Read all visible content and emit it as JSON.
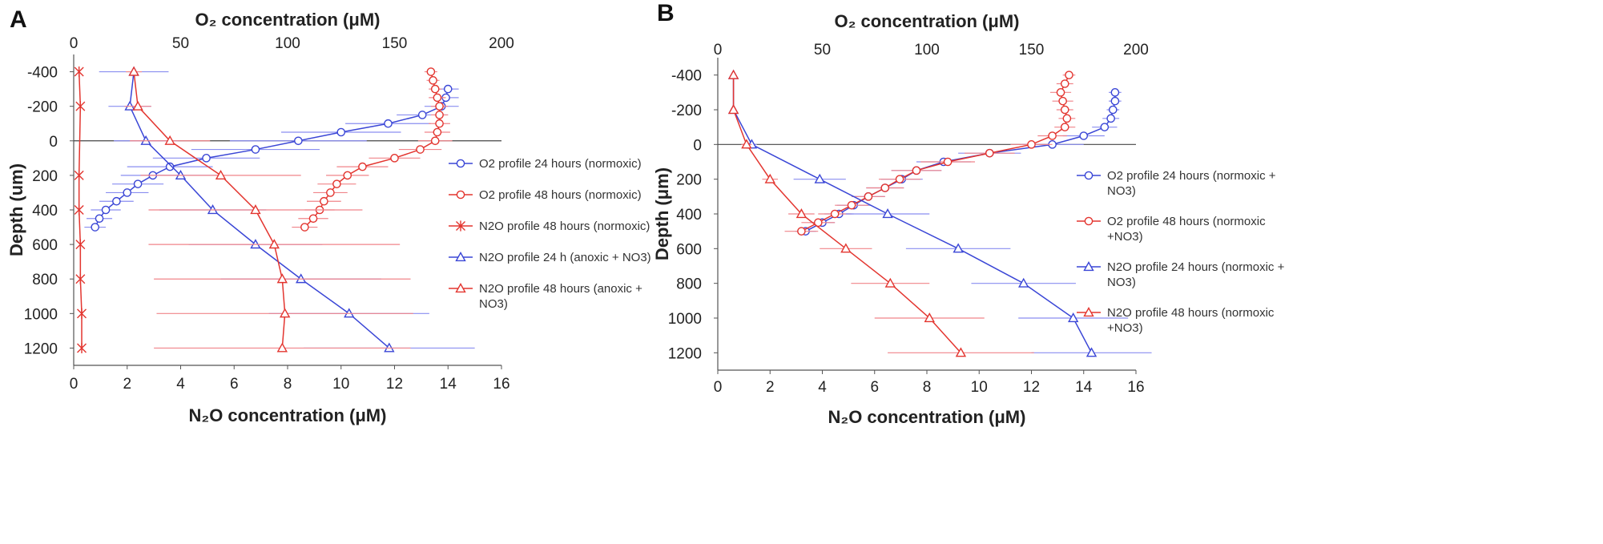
{
  "colors": {
    "blue": "#3a46d6",
    "blue_err": "#8a8ef0",
    "red": "#e3352f",
    "red_err": "#f0848a",
    "axis": "#555555",
    "zero_line": "#444444"
  },
  "chart_data": [
    {
      "panel": "A",
      "type": "line",
      "title_top": "O₂ concentration (μM)",
      "xlabel": "N₂O concentration (μM)",
      "ylabel": "Depth (um)",
      "x_bottom_range": [
        0,
        16
      ],
      "x_bottom_ticks": [
        "0",
        "2",
        "4",
        "6",
        "8",
        "10",
        "12",
        "14",
        "16"
      ],
      "x_top_range": [
        0,
        200
      ],
      "x_top_ticks": [
        "0",
        "50",
        "100",
        "150",
        "200"
      ],
      "y_range": [
        -500,
        1300
      ],
      "y_ticks": [
        "-400",
        "-200",
        "0",
        "200",
        "400",
        "600",
        "800",
        "1000",
        "1200"
      ],
      "legend": [
        "O2 profile 24 hours (normoxic)",
        "O2 profile 48 hours (normoxic)",
        "N2O profile 48 hours (normoxic)",
        "N2O profile 24 h (anoxic + NO3)",
        "N2O profile 48 hours (anoxic + NO3)"
      ],
      "legend_lines": [
        [
          "O2 profile 24 hours (normoxic)"
        ],
        [
          "O2 profile 48 hours (normoxic)"
        ],
        [
          "N2O profile 48 hours (normoxic)"
        ],
        [
          "N2O profile 24 h (anoxic + NO3)"
        ],
        [
          "N2O profile 48 hours (anoxic +",
          "NO3)"
        ]
      ],
      "series": [
        {
          "name": "O2 profile 24 hours (normoxic)",
          "axis": "top",
          "marker": "circle",
          "color": "blue",
          "depth": [
            -300,
            -250,
            -200,
            -150,
            -100,
            -50,
            0,
            50,
            100,
            150,
            200,
            250,
            300,
            350,
            400,
            450,
            500
          ],
          "value": [
            175,
            174,
            172,
            163,
            147,
            125,
            105,
            85,
            62,
            45,
            37,
            30,
            25,
            20,
            15,
            12,
            10
          ],
          "err": [
            5,
            6,
            8,
            12,
            20,
            28,
            32,
            30,
            25,
            20,
            15,
            12,
            10,
            8,
            7,
            6,
            5
          ]
        },
        {
          "name": "O2 profile 48 hours (normoxic)",
          "axis": "top",
          "marker": "circle",
          "color": "red",
          "depth": [
            -400,
            -350,
            -300,
            -250,
            -200,
            -150,
            -100,
            -50,
            0,
            50,
            100,
            150,
            200,
            250,
            300,
            350,
            400,
            450,
            500
          ],
          "value": [
            167,
            168,
            169,
            170,
            171,
            171,
            171,
            170,
            169,
            162,
            150,
            135,
            128,
            123,
            120,
            117,
            115,
            112,
            108
          ],
          "err": [
            3,
            3,
            3,
            4,
            4,
            4,
            5,
            6,
            8,
            10,
            12,
            12,
            10,
            9,
            8,
            8,
            7,
            7,
            6
          ]
        },
        {
          "name": "N2O profile 48 hours (normoxic)",
          "axis": "bottom",
          "marker": "star",
          "color": "red",
          "depth": [
            -400,
            -200,
            200,
            400,
            600,
            800,
            1000,
            1200
          ],
          "value": [
            0.2,
            0.25,
            0.2,
            0.2,
            0.25,
            0.25,
            0.3,
            0.3
          ],
          "err": [
            0,
            0,
            0,
            0,
            0,
            0,
            0,
            0
          ]
        },
        {
          "name": "N2O profile 24 h (anoxic + NO3)",
          "axis": "bottom",
          "marker": "triangle",
          "color": "blue",
          "depth": [
            -400,
            -200,
            0,
            200,
            400,
            600,
            800,
            1000,
            1200
          ],
          "value": [
            2.25,
            2.1,
            2.7,
            4.0,
            5.2,
            6.8,
            8.5,
            10.3,
            11.8
          ],
          "err": [
            1.3,
            0.8,
            1.2,
            1.5,
            2.0,
            2.5,
            3.0,
            3.0,
            3.2
          ]
        },
        {
          "name": "N2O profile 48 hours (anoxic + NO3)",
          "axis": "bottom",
          "marker": "triangle",
          "color": "red",
          "depth": [
            -400,
            -200,
            0,
            200,
            400,
            600,
            800,
            1000,
            1200
          ],
          "value": [
            2.25,
            2.4,
            3.6,
            5.5,
            6.8,
            7.5,
            7.8,
            7.9,
            7.8
          ],
          "err": [
            0.3,
            0.5,
            1.5,
            3.0,
            4.0,
            4.7,
            4.8,
            4.8,
            4.8
          ]
        }
      ]
    },
    {
      "panel": "B",
      "type": "line",
      "title_top": "O₂ concentration (μM)",
      "xlabel": "N₂O concentration (μM)",
      "ylabel": "Depth (μm)",
      "x_bottom_range": [
        0,
        16
      ],
      "x_bottom_ticks": [
        "0",
        "2",
        "4",
        "6",
        "8",
        "10",
        "12",
        "14",
        "16"
      ],
      "x_top_range": [
        0,
        200
      ],
      "x_top_ticks": [
        "0",
        "50",
        "100",
        "150",
        "200"
      ],
      "y_range": [
        -500,
        1300
      ],
      "y_ticks": [
        "-400",
        "-200",
        "0",
        "200",
        "400",
        "600",
        "800",
        "1000",
        "1200"
      ],
      "legend": [
        "O2 profile 24 hours (normoxic + NO3)",
        "O2 profile 48 hours (normoxic +NO3)",
        "N2O profile 24 hours (normoxic + NO3)",
        "N2O profile 48 hours (normoxic +NO3)"
      ],
      "legend_lines": [
        [
          "O2 profile 24 hours (normoxic +",
          "NO3)"
        ],
        [
          "O2 profile 48 hours (normoxic",
          "+NO3)"
        ],
        [
          "N2O profile 24 hours (normoxic +",
          "NO3)"
        ],
        [
          "N2O profile 48 hours (normoxic",
          "+NO3)"
        ]
      ],
      "series": [
        {
          "name": "O2 profile 24 hours (normoxic + NO3)",
          "axis": "top",
          "marker": "circle",
          "color": "blue",
          "depth": [
            -300,
            -250,
            -200,
            -150,
            -100,
            -50,
            0,
            50,
            100,
            150,
            200,
            250,
            300,
            350,
            400,
            450,
            500
          ],
          "value": [
            190,
            190,
            189,
            188,
            185,
            175,
            160,
            130,
            108,
            95,
            88,
            80,
            72,
            65,
            58,
            50,
            42
          ],
          "err": [
            3,
            3,
            3,
            4,
            6,
            10,
            15,
            15,
            13,
            12,
            10,
            9,
            8,
            8,
            7,
            6,
            5
          ]
        },
        {
          "name": "O2 profile 48 hours (normoxic +NO3)",
          "axis": "top",
          "marker": "circle",
          "color": "red",
          "depth": [
            -400,
            -350,
            -300,
            -250,
            -200,
            -150,
            -100,
            -50,
            0,
            50,
            100,
            150,
            200,
            250,
            300,
            350,
            400,
            450,
            500
          ],
          "value": [
            168,
            166,
            164,
            165,
            166,
            167,
            166,
            160,
            150,
            130,
            110,
            95,
            87,
            80,
            72,
            64,
            56,
            48,
            40
          ],
          "err": [
            3,
            4,
            5,
            5,
            4,
            4,
            5,
            7,
            10,
            12,
            13,
            12,
            10,
            9,
            8,
            8,
            8,
            8,
            8
          ]
        },
        {
          "name": "N2O profile 24 hours (normoxic + NO3)",
          "axis": "bottom",
          "marker": "triangle",
          "color": "blue",
          "depth": [
            -400,
            -200,
            0,
            200,
            400,
            600,
            800,
            1000,
            1200
          ],
          "value": [
            0.6,
            0.6,
            1.3,
            3.9,
            6.5,
            9.2,
            11.7,
            13.6,
            14.3
          ],
          "err": [
            0,
            0,
            0.2,
            1.0,
            1.6,
            2.0,
            2.0,
            2.1,
            2.3
          ]
        },
        {
          "name": "N2O profile 48 hours (normoxic +NO3)",
          "axis": "bottom",
          "marker": "triangle",
          "color": "red",
          "depth": [
            -400,
            -200,
            0,
            200,
            400,
            600,
            800,
            1000,
            1200
          ],
          "value": [
            0.6,
            0.6,
            1.1,
            2.0,
            3.2,
            4.9,
            6.6,
            8.1,
            9.3
          ],
          "err": [
            0,
            0,
            0.2,
            0.3,
            0.5,
            1.0,
            1.5,
            2.1,
            2.8
          ]
        }
      ]
    }
  ]
}
